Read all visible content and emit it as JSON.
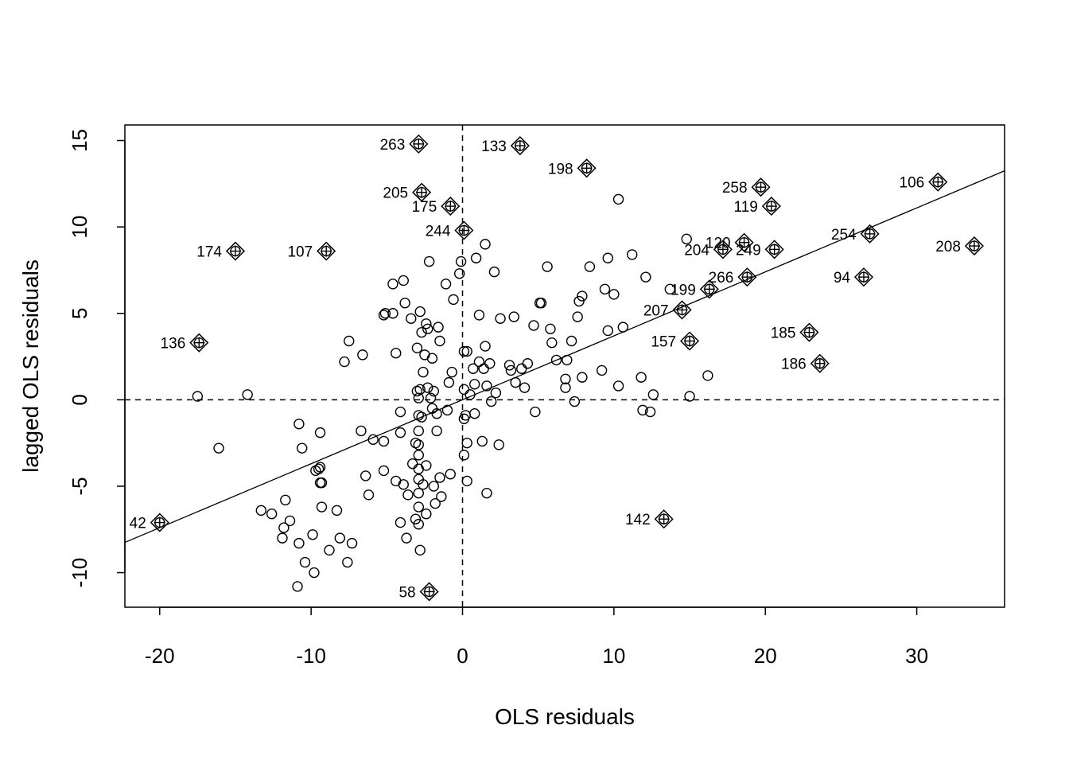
{
  "chart_data": {
    "type": "scatter",
    "title": "",
    "xlabel": "OLS residuals",
    "ylabel": "lagged OLS residuals",
    "xlim": [
      -22.3,
      35.8
    ],
    "ylim": [
      -12.0,
      15.9
    ],
    "x_ticks": [
      "-20",
      "-10",
      "0",
      "10",
      "20",
      "30"
    ],
    "y_ticks": [
      "-10",
      "-5",
      "0",
      "5",
      "10",
      "15"
    ],
    "grid": false,
    "reference_lines": {
      "x": 0,
      "y": 0,
      "style": "dashed"
    },
    "regression_line": {
      "intercept": 0.0,
      "slope": 0.37
    },
    "points": [
      [
        -17.5,
        0.2
      ],
      [
        -14.2,
        0.3
      ],
      [
        -16.1,
        -2.8
      ],
      [
        -13.3,
        -6.4
      ],
      [
        -12.6,
        -6.6
      ],
      [
        -11.9,
        -8.0
      ],
      [
        -11.7,
        -5.8
      ],
      [
        -11.8,
        -7.4
      ],
      [
        -11.4,
        -7.0
      ],
      [
        -10.8,
        -8.3
      ],
      [
        -10.4,
        -9.4
      ],
      [
        -10.9,
        -10.8
      ],
      [
        -9.8,
        -10.0
      ],
      [
        -9.9,
        -7.8
      ],
      [
        -10.8,
        -1.4
      ],
      [
        -10.6,
        -2.8
      ],
      [
        -9.4,
        -1.9
      ],
      [
        -9.7,
        -4.1
      ],
      [
        -9.4,
        -3.9
      ],
      [
        -9.5,
        -4.0
      ],
      [
        -9.3,
        -4.8
      ],
      [
        -9.4,
        -4.8
      ],
      [
        -9.3,
        -6.2
      ],
      [
        -8.8,
        -8.7
      ],
      [
        -8.3,
        -6.4
      ],
      [
        -8.1,
        -8.0
      ],
      [
        -7.6,
        -9.4
      ],
      [
        -7.3,
        -8.3
      ],
      [
        -7.8,
        2.2
      ],
      [
        -7.5,
        3.4
      ],
      [
        -6.7,
        -1.8
      ],
      [
        -6.4,
        -4.4
      ],
      [
        -6.2,
        -5.5
      ],
      [
        -6.6,
        2.6
      ],
      [
        -5.9,
        -2.3
      ],
      [
        -5.2,
        -4.1
      ],
      [
        -5.1,
        5.0
      ],
      [
        -5.2,
        4.9
      ],
      [
        -5.2,
        -2.4
      ],
      [
        -4.6,
        5.0
      ],
      [
        -4.6,
        6.7
      ],
      [
        -4.4,
        2.7
      ],
      [
        -4.4,
        -4.7
      ],
      [
        -4.1,
        -0.7
      ],
      [
        -4.1,
        -1.9
      ],
      [
        -4.1,
        -7.1
      ],
      [
        -3.9,
        -4.9
      ],
      [
        -3.9,
        6.9
      ],
      [
        -3.8,
        5.6
      ],
      [
        -3.6,
        -5.5
      ],
      [
        -3.7,
        -8.0
      ],
      [
        -3.4,
        4.7
      ],
      [
        -3.3,
        -3.7
      ],
      [
        -3.1,
        -2.5
      ],
      [
        -3.1,
        -6.9
      ],
      [
        -3.0,
        3.0
      ],
      [
        -3.0,
        0.5
      ],
      [
        -2.9,
        0.1
      ],
      [
        -2.9,
        -0.9
      ],
      [
        -2.9,
        -1.8
      ],
      [
        -2.9,
        -2.6
      ],
      [
        -2.9,
        -3.2
      ],
      [
        -2.9,
        -4.0
      ],
      [
        -2.9,
        -4.6
      ],
      [
        -2.9,
        -5.4
      ],
      [
        -2.9,
        -6.2
      ],
      [
        -2.9,
        -7.2
      ],
      [
        -2.8,
        0.6
      ],
      [
        -2.8,
        5.1
      ],
      [
        -2.8,
        -8.7
      ],
      [
        -2.7,
        3.9
      ],
      [
        -2.7,
        -1.0
      ],
      [
        -2.6,
        1.6
      ],
      [
        -2.6,
        -4.9
      ],
      [
        -2.5,
        2.6
      ],
      [
        -2.4,
        4.4
      ],
      [
        -2.4,
        -3.8
      ],
      [
        -2.4,
        -6.6
      ],
      [
        -2.3,
        4.1
      ],
      [
        -2.3,
        0.7
      ],
      [
        -2.2,
        8.0
      ],
      [
        -2.1,
        0.1
      ],
      [
        -2.0,
        2.4
      ],
      [
        -2.0,
        -0.5
      ],
      [
        -1.9,
        0.5
      ],
      [
        -1.9,
        -5.0
      ],
      [
        -1.8,
        -6.0
      ],
      [
        -1.7,
        -1.8
      ],
      [
        -1.7,
        -0.8
      ],
      [
        -1.6,
        4.2
      ],
      [
        -1.5,
        3.4
      ],
      [
        -1.5,
        -4.5
      ],
      [
        -1.4,
        -5.6
      ],
      [
        -1.1,
        6.7
      ],
      [
        -1.0,
        -0.6
      ],
      [
        -0.9,
        1.0
      ],
      [
        -0.8,
        -4.3
      ],
      [
        -0.7,
        1.6
      ],
      [
        -0.6,
        5.8
      ],
      [
        -0.2,
        7.3
      ],
      [
        -0.1,
        8.0
      ],
      [
        0.1,
        2.8
      ],
      [
        0.1,
        0.6
      ],
      [
        0.1,
        -1.1
      ],
      [
        0.1,
        -3.2
      ],
      [
        0.2,
        -0.9
      ],
      [
        0.3,
        2.8
      ],
      [
        0.3,
        -2.5
      ],
      [
        0.3,
        -4.7
      ],
      [
        0.5,
        0.3
      ],
      [
        0.7,
        1.8
      ],
      [
        0.8,
        0.9
      ],
      [
        0.8,
        -0.8
      ],
      [
        0.9,
        8.2
      ],
      [
        1.1,
        4.9
      ],
      [
        1.1,
        2.2
      ],
      [
        1.3,
        -2.4
      ],
      [
        1.4,
        1.8
      ],
      [
        1.5,
        3.1
      ],
      [
        1.5,
        9.0
      ],
      [
        1.6,
        0.8
      ],
      [
        1.6,
        -5.4
      ],
      [
        1.8,
        2.1
      ],
      [
        1.9,
        -0.1
      ],
      [
        2.1,
        7.4
      ],
      [
        2.2,
        0.4
      ],
      [
        2.4,
        -2.6
      ],
      [
        2.5,
        4.7
      ],
      [
        3.1,
        2.0
      ],
      [
        3.2,
        1.7
      ],
      [
        3.4,
        4.8
      ],
      [
        3.5,
        1.0
      ],
      [
        3.9,
        1.8
      ],
      [
        4.1,
        0.7
      ],
      [
        4.3,
        2.1
      ],
      [
        4.7,
        4.3
      ],
      [
        4.8,
        -0.7
      ],
      [
        5.1,
        5.6
      ],
      [
        5.2,
        5.6
      ],
      [
        5.6,
        7.7
      ],
      [
        5.8,
        4.1
      ],
      [
        5.9,
        3.3
      ],
      [
        6.2,
        2.3
      ],
      [
        6.8,
        1.2
      ],
      [
        6.8,
        0.7
      ],
      [
        6.9,
        2.3
      ],
      [
        7.2,
        3.4
      ],
      [
        7.4,
        -0.1
      ],
      [
        7.6,
        4.8
      ],
      [
        7.7,
        5.7
      ],
      [
        7.9,
        6.0
      ],
      [
        7.9,
        1.3
      ],
      [
        8.4,
        7.7
      ],
      [
        9.2,
        1.7
      ],
      [
        9.4,
        6.4
      ],
      [
        9.6,
        8.2
      ],
      [
        9.6,
        4.0
      ],
      [
        10.0,
        6.1
      ],
      [
        10.3,
        11.6
      ],
      [
        10.3,
        0.8
      ],
      [
        10.6,
        4.2
      ],
      [
        11.2,
        8.4
      ],
      [
        11.8,
        1.3
      ],
      [
        11.9,
        -0.6
      ],
      [
        12.1,
        7.1
      ],
      [
        12.4,
        -0.7
      ],
      [
        12.6,
        0.3
      ],
      [
        13.7,
        6.4
      ],
      [
        14.8,
        9.3
      ],
      [
        15.0,
        0.2
      ],
      [
        16.2,
        1.4
      ]
    ],
    "highlighted": [
      {
        "id": "263",
        "x": -2.9,
        "y": 14.8,
        "label_side": "left"
      },
      {
        "id": "133",
        "x": 3.8,
        "y": 14.7,
        "label_side": "left"
      },
      {
        "id": "198",
        "x": 8.2,
        "y": 13.4,
        "label_side": "left"
      },
      {
        "id": "205",
        "x": -2.7,
        "y": 12.0,
        "label_side": "left"
      },
      {
        "id": "175",
        "x": -0.8,
        "y": 11.2,
        "label_side": "left"
      },
      {
        "id": "244",
        "x": 0.1,
        "y": 9.8,
        "label_side": "left"
      },
      {
        "id": "174",
        "x": -15.0,
        "y": 8.6,
        "label_side": "left"
      },
      {
        "id": "107",
        "x": -9.0,
        "y": 8.6,
        "label_side": "left"
      },
      {
        "id": "136",
        "x": -17.4,
        "y": 3.3,
        "label_side": "left"
      },
      {
        "id": "42",
        "x": -20.0,
        "y": -7.1,
        "label_side": "left"
      },
      {
        "id": "58",
        "x": -2.2,
        "y": -11.1,
        "label_side": "left"
      },
      {
        "id": "142",
        "x": 13.3,
        "y": -6.9,
        "label_side": "left"
      },
      {
        "id": "157",
        "x": 15.0,
        "y": 3.4,
        "label_side": "left"
      },
      {
        "id": "207",
        "x": 14.5,
        "y": 5.2,
        "label_side": "left"
      },
      {
        "id": "199",
        "x": 16.3,
        "y": 6.4,
        "label_side": "left"
      },
      {
        "id": "266",
        "x": 18.8,
        "y": 7.1,
        "label_side": "left"
      },
      {
        "id": "204",
        "x": 17.2,
        "y": 8.7,
        "label_side": "left"
      },
      {
        "id": "120",
        "x": 18.6,
        "y": 9.1,
        "label_side": "left"
      },
      {
        "id": "249",
        "x": 20.6,
        "y": 8.7,
        "label_side": "left"
      },
      {
        "id": "258",
        "x": 19.7,
        "y": 12.3,
        "label_side": "left"
      },
      {
        "id": "119",
        "x": 20.4,
        "y": 11.2,
        "label_side": "left"
      },
      {
        "id": "185",
        "x": 22.9,
        "y": 3.9,
        "label_side": "left"
      },
      {
        "id": "186",
        "x": 23.6,
        "y": 2.1,
        "label_side": "left"
      },
      {
        "id": "94",
        "x": 26.5,
        "y": 7.1,
        "label_side": "left"
      },
      {
        "id": "254",
        "x": 26.9,
        "y": 9.6,
        "label_side": "left"
      },
      {
        "id": "106",
        "x": 31.4,
        "y": 12.6,
        "label_side": "left"
      },
      {
        "id": "208",
        "x": 33.8,
        "y": 8.9,
        "label_side": "left"
      }
    ]
  }
}
